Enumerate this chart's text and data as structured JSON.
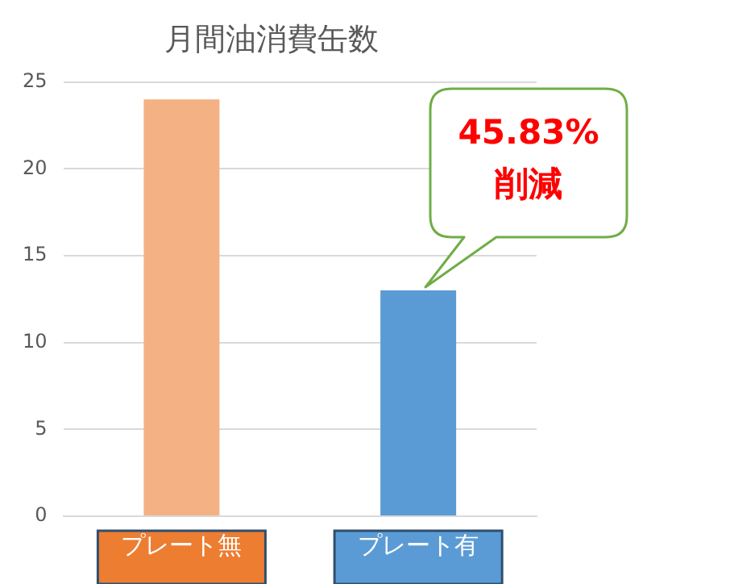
{
  "chart_data": {
    "type": "bar",
    "title": "月間油消費缶数",
    "categories": [
      "プレート無",
      "プレート有"
    ],
    "values": [
      24,
      13
    ],
    "colors": [
      "#f4b183",
      "#5b9bd5"
    ],
    "ylim": [
      0,
      25
    ],
    "yticks": [
      0,
      5,
      10,
      15,
      20,
      25
    ],
    "grid": "y",
    "annotations": [
      "45.83%\n削減"
    ]
  }
}
